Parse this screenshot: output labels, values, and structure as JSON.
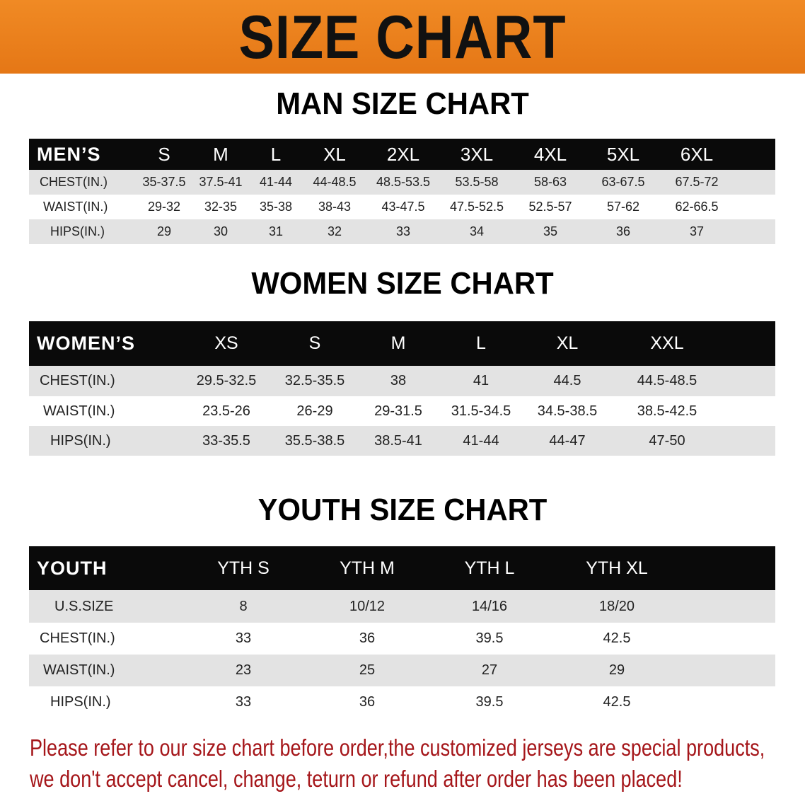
{
  "banner": {
    "title": "SIZE CHART",
    "color": "#ec821c"
  },
  "men": {
    "title": "MAN SIZE CHART",
    "header": [
      "MEN’S",
      "S",
      "M",
      "L",
      "XL",
      "2XL",
      "3XL",
      "4XL",
      "5XL",
      "6XL"
    ],
    "rows": [
      [
        "CHEST(IN.)",
        "35-37.5",
        "37.5-41",
        "41-44",
        "44-48.5",
        "48.5-53.5",
        "53.5-58",
        "58-63",
        "63-67.5",
        "67.5-72"
      ],
      [
        "WAIST(IN.)",
        "29-32",
        "32-35",
        "35-38",
        "38-43",
        "43-47.5",
        "47.5-52.5",
        "52.5-57",
        "57-62",
        "62-66.5"
      ],
      [
        "HIPS(IN.)",
        "29",
        "30",
        "31",
        "32",
        "33",
        "34",
        "35",
        "36",
        "37"
      ]
    ]
  },
  "women": {
    "title": "WOMEN SIZE CHART",
    "header": [
      "WOMEN’S",
      "XS",
      "S",
      "M",
      "L",
      "XL",
      "XXL"
    ],
    "rows": [
      [
        "CHEST(IN.)",
        "29.5-32.5",
        "32.5-35.5",
        "38",
        "41",
        "44.5",
        "44.5-48.5"
      ],
      [
        "WAIST(IN.)",
        "23.5-26",
        "26-29",
        "29-31.5",
        "31.5-34.5",
        "34.5-38.5",
        "38.5-42.5"
      ],
      [
        "HIPS(IN.)",
        "33-35.5",
        "35.5-38.5",
        "38.5-41",
        "41-44",
        "44-47",
        "47-50"
      ]
    ]
  },
  "youth": {
    "title": "YOUTH SIZE CHART",
    "header": [
      "YOUTH",
      "YTH S",
      "YTH M",
      "YTH L",
      "YTH XL"
    ],
    "rows": [
      [
        "U.S.SIZE",
        "8",
        "10/12",
        "14/16",
        "18/20"
      ],
      [
        "CHEST(IN.)",
        "33",
        "36",
        "39.5",
        "42.5"
      ],
      [
        "WAIST(IN.)",
        "23",
        "25",
        "27",
        "29"
      ],
      [
        "HIPS(IN.)",
        "33",
        "36",
        "39.5",
        "42.5"
      ]
    ]
  },
  "notice": {
    "line1": "Please refer to our size chart before order,the customized jerseys are special products,",
    "line2": "we don't accept cancel, change, teturn or refund after order has been placed!",
    "color": "#a5161a"
  }
}
